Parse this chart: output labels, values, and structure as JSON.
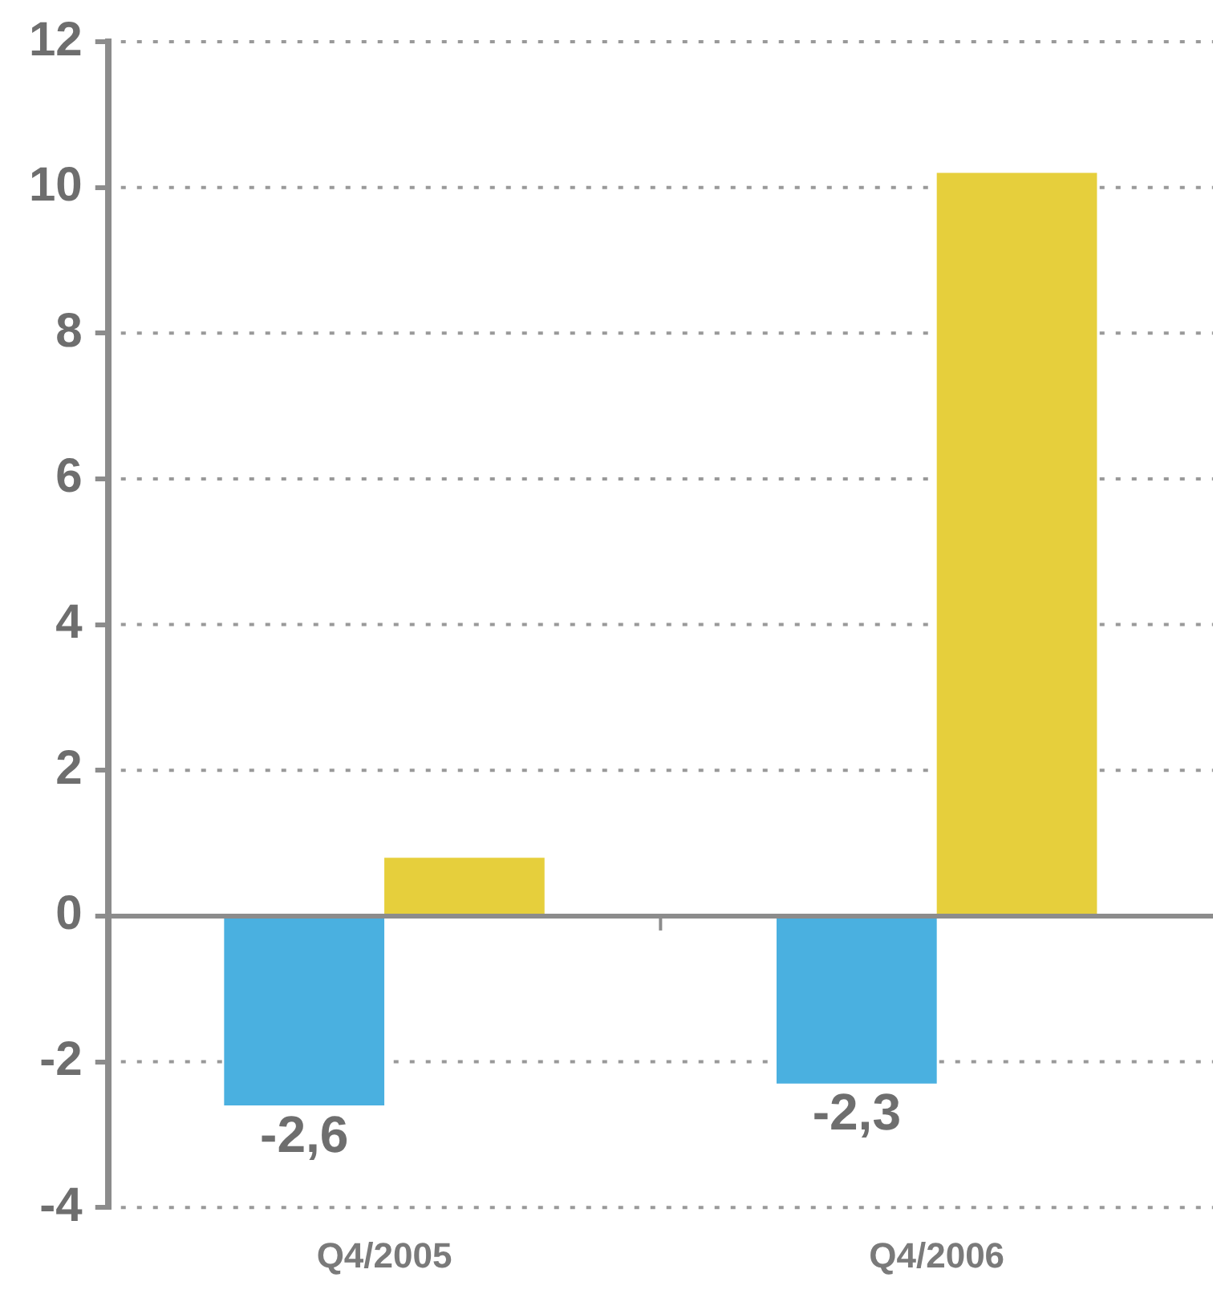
{
  "chart_data": {
    "type": "bar",
    "categories": [
      "Q4/2005",
      "Q4/2006"
    ],
    "series": [
      {
        "color": "#4ab0e0",
        "values": [
          -2.6,
          -2.3
        ],
        "value_labels": [
          "-2,6",
          "-2,3"
        ]
      },
      {
        "color": "#e6cf3c",
        "values": [
          0.8,
          10.2
        ]
      }
    ],
    "ylim": [
      -4,
      12
    ],
    "yticks": [
      -4,
      -2,
      0,
      2,
      4,
      6,
      8,
      10,
      12
    ],
    "grid": "y",
    "legend": false
  }
}
